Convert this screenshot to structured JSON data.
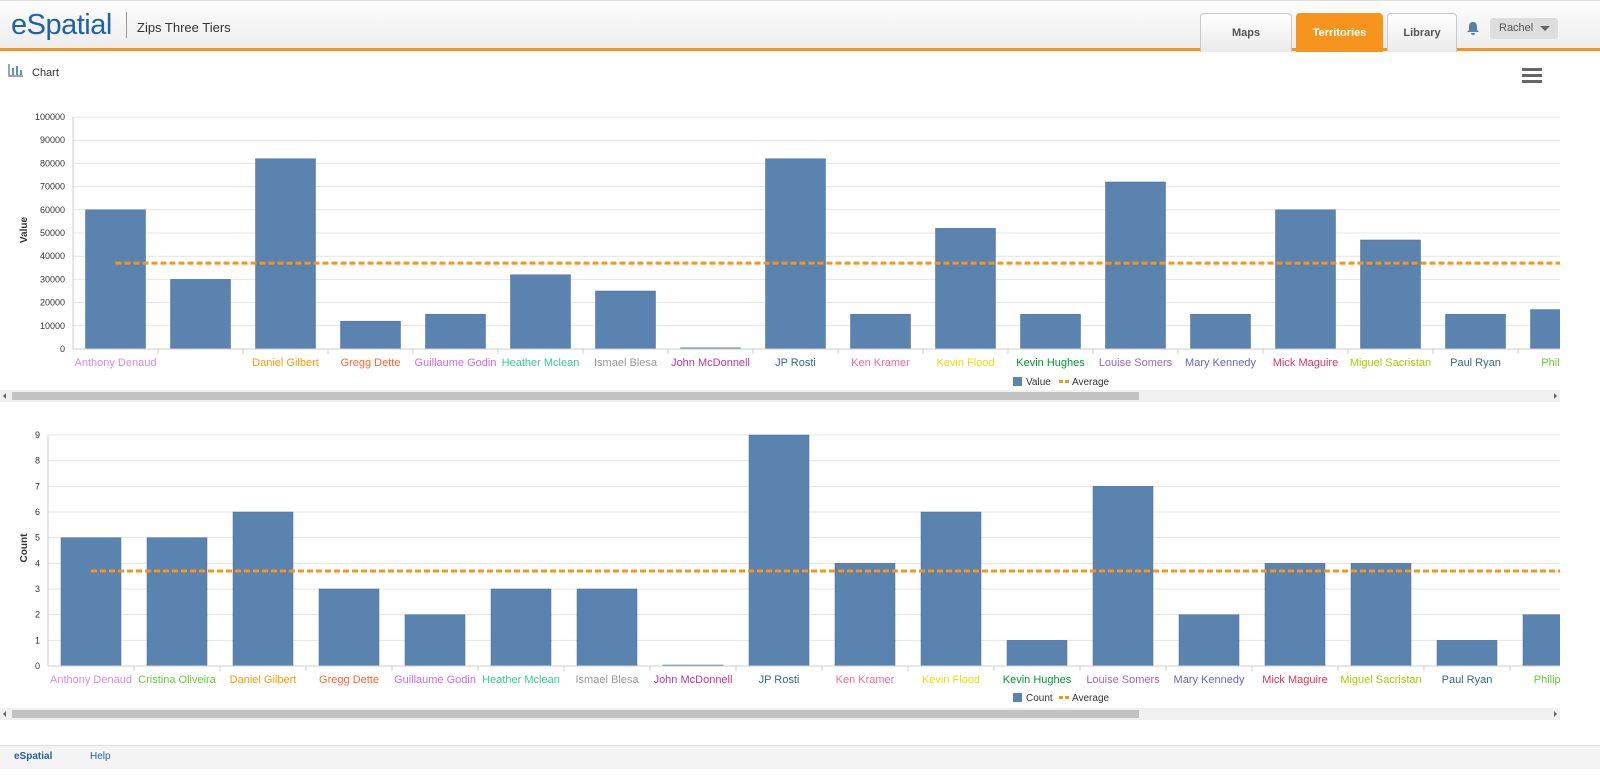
{
  "header": {
    "logo": "eSpatial",
    "title": "Zips Three Tiers",
    "tabs": [
      "Maps",
      "Territories",
      "Library"
    ],
    "user": "Rachel"
  },
  "panel": {
    "title": "Chart"
  },
  "footer": {
    "links": [
      "eSpatial",
      "Help"
    ]
  },
  "chart_data": [
    {
      "type": "bar",
      "y_label": "Value",
      "categories": [
        "Anthony Denaud",
        null,
        "Daniel Gilbert",
        "Gregg Dette",
        "Guillaume Godin",
        "Heather Mclean",
        "Ismael Blesa",
        "John McDonnell",
        "JP Rosti",
        "Ken Kramer",
        "Kevin Flood",
        "Kevin Hughes",
        "Louise Somers",
        "Mary Kennedy",
        "Mick Maguire",
        "Miguel Sacristan",
        "Paul Ryan",
        "Philip O"
      ],
      "category_colors": [
        "#dd88ee",
        "#66cc33",
        "#ff9900",
        "#ff6633",
        "#cc66ff",
        "#33cc99",
        "#999999",
        "#cc3399",
        "#336699",
        "#ff6699",
        "#eedd00",
        "#009933",
        "#9966cc",
        "#6666cc",
        "#e6335a",
        "#aacc00",
        "#336699",
        "#66cc33"
      ],
      "series": [
        {
          "name": "Value",
          "color": "#5b83b0",
          "values": [
            60000,
            30000,
            82000,
            12000,
            15000,
            32000,
            25000,
            500,
            82000,
            15000,
            52000,
            15000,
            72000,
            15000,
            60000,
            47000,
            15000,
            17000
          ]
        }
      ],
      "average": {
        "name": "Average",
        "value": 37000,
        "color": "#f7941d"
      },
      "ylim": [
        0,
        100000
      ],
      "yticks": [
        0,
        10000,
        20000,
        30000,
        40000,
        50000,
        60000,
        70000,
        80000,
        90000,
        100000
      ],
      "grid": true
    },
    {
      "type": "bar",
      "y_label": "Count",
      "categories": [
        "Anthony Denaud",
        "Cristina Oliveira",
        "Daniel Gilbert",
        "Gregg Dette",
        "Guillaume Godin",
        "Heather Mclean",
        "Ismael Blesa",
        "John McDonnell",
        "JP Rosti",
        "Ken Kramer",
        "Kevin Flood",
        "Kevin Hughes",
        "Louise Somers",
        "Mary Kennedy",
        "Mick Maguire",
        "Miguel Sacristan",
        "Paul Ryan",
        "Philip O"
      ],
      "category_colors": [
        "#dd88ee",
        "#66cc33",
        "#ff9900",
        "#ff6633",
        "#cc66ff",
        "#33cc99",
        "#999999",
        "#cc3399",
        "#336699",
        "#ff6699",
        "#eedd00",
        "#009933",
        "#9966cc",
        "#6666cc",
        "#e6335a",
        "#aacc00",
        "#336699",
        "#66cc33"
      ],
      "series": [
        {
          "name": "Count",
          "color": "#5b83b0",
          "values": [
            5,
            5,
            6,
            3,
            2,
            3,
            3,
            0,
            9,
            4,
            6,
            1,
            7,
            2,
            4,
            4,
            1,
            2
          ]
        }
      ],
      "average": {
        "name": "Average",
        "value": 3.7,
        "color": "#f7941d"
      },
      "ylim": [
        0,
        9
      ],
      "yticks": [
        0,
        1,
        2,
        3,
        4,
        5,
        6,
        7,
        8,
        9
      ],
      "grid": true
    }
  ]
}
